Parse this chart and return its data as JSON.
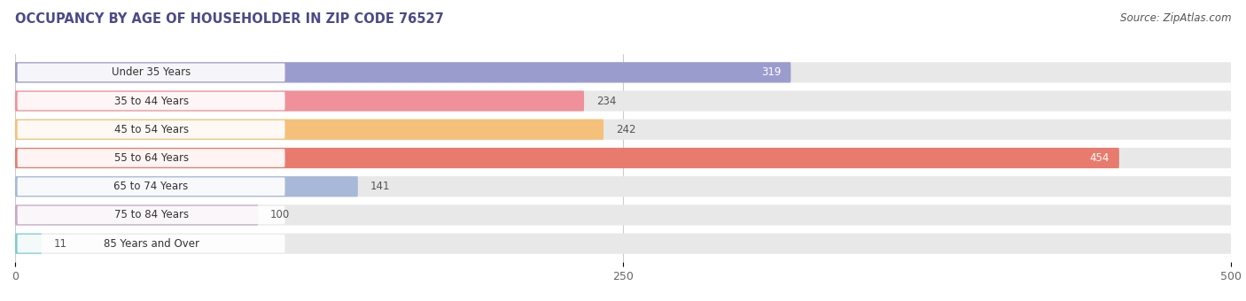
{
  "title": "OCCUPANCY BY AGE OF HOUSEHOLDER IN ZIP CODE 76527",
  "source": "Source: ZipAtlas.com",
  "categories": [
    "Under 35 Years",
    "35 to 44 Years",
    "45 to 54 Years",
    "55 to 64 Years",
    "65 to 74 Years",
    "75 to 84 Years",
    "85 Years and Over"
  ],
  "values": [
    319,
    234,
    242,
    454,
    141,
    100,
    11
  ],
  "bar_colors": [
    "#9b9cce",
    "#f0909b",
    "#f5c07a",
    "#e87b6e",
    "#a8b8d8",
    "#c8a8c8",
    "#7ecece"
  ],
  "xlim": [
    0,
    500
  ],
  "xticks": [
    0,
    250,
    500
  ],
  "title_fontsize": 10.5,
  "source_fontsize": 8.5,
  "label_fontsize": 8.5,
  "value_fontsize": 8.5,
  "background_color": "#f7f7f7",
  "bar_background": "#e8e8e8",
  "value_inside_color": "white",
  "value_outside_color": "#555555",
  "label_text_color": "#333333",
  "value_inside_threshold": 319
}
